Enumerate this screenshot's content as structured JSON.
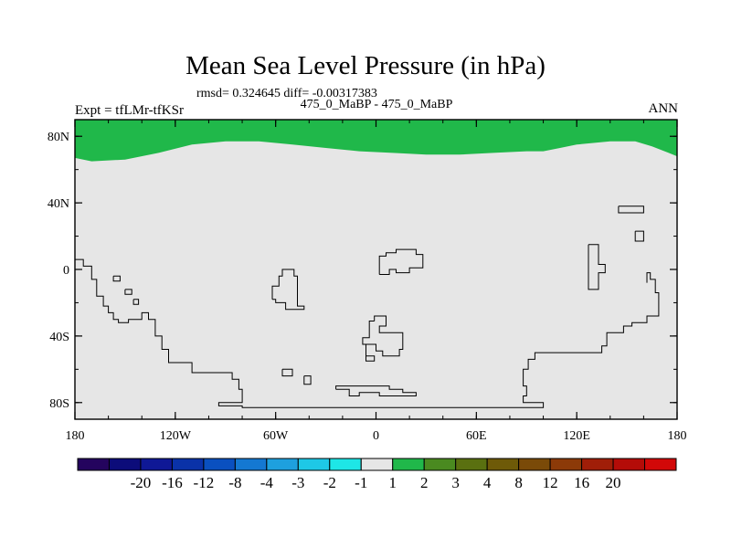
{
  "chart_data": {
    "type": "heatmap",
    "title": "Mean Sea Level Pressure (in hPa)",
    "stats_line": "rmsd= 0.324645 diff= -0.00317383",
    "subtitle": "475_0_MaBP - 475_0_MaBP",
    "left_label": "Expt = tfLMr-tfKSr",
    "right_label": "ANN",
    "x_axis": {
      "range": [
        -180,
        180
      ],
      "ticks": [
        {
          "value": -180,
          "label": "180"
        },
        {
          "value": -120,
          "label": "120W"
        },
        {
          "value": -60,
          "label": "60W"
        },
        {
          "value": 0,
          "label": "0"
        },
        {
          "value": 60,
          "label": "60E"
        },
        {
          "value": 120,
          "label": "120E"
        },
        {
          "value": 180,
          "label": "180"
        }
      ]
    },
    "y_axis": {
      "range": [
        -90,
        90
      ],
      "ticks": [
        {
          "value": 80,
          "label": "80N"
        },
        {
          "value": 40,
          "label": "40N"
        },
        {
          "value": 0,
          "label": "0"
        },
        {
          "value": -40,
          "label": "40S"
        },
        {
          "value": -80,
          "label": "80S"
        }
      ]
    },
    "background_color": "#e6e6e6",
    "field_regions": [
      {
        "name": "arctic-positive-anomaly",
        "color": "#20b84a",
        "range_label": "1 to 2",
        "top_lat": 90,
        "boundary": [
          [
            -180,
            67
          ],
          [
            -170,
            65
          ],
          [
            -150,
            66
          ],
          [
            -130,
            70
          ],
          [
            -110,
            75
          ],
          [
            -90,
            77
          ],
          [
            -70,
            77
          ],
          [
            -50,
            75
          ],
          [
            -30,
            73
          ],
          [
            -10,
            71
          ],
          [
            10,
            70
          ],
          [
            30,
            69
          ],
          [
            50,
            69
          ],
          [
            70,
            70
          ],
          [
            90,
            71
          ],
          [
            100,
            71
          ],
          [
            110,
            73
          ],
          [
            120,
            75
          ],
          [
            140,
            77
          ],
          [
            155,
            77
          ],
          [
            165,
            74
          ],
          [
            175,
            70
          ],
          [
            180,
            68
          ]
        ]
      }
    ],
    "land_outlines": [
      {
        "name": "south-america-outline",
        "points": [
          [
            -180,
            6
          ],
          [
            -175,
            6
          ],
          [
            -175,
            2
          ],
          [
            -170,
            2
          ],
          [
            -170,
            -6
          ],
          [
            -167,
            -6
          ],
          [
            -167,
            -16
          ],
          [
            -163,
            -16
          ],
          [
            -163,
            -22
          ],
          [
            -160,
            -22
          ],
          [
            -160,
            -26
          ],
          [
            -157,
            -26
          ],
          [
            -157,
            -30
          ],
          [
            -154,
            -30
          ],
          [
            -154,
            -32
          ],
          [
            -148,
            -32
          ],
          [
            -148,
            -30
          ],
          [
            -140,
            -30
          ],
          [
            -140,
            -26
          ],
          [
            -136,
            -26
          ],
          [
            -136,
            -30
          ],
          [
            -132,
            -30
          ],
          [
            -132,
            -40
          ],
          [
            -128,
            -40
          ],
          [
            -128,
            -48
          ],
          [
            -124,
            -48
          ],
          [
            -124,
            -56
          ],
          [
            -110,
            -56
          ],
          [
            -110,
            -62
          ],
          [
            -86,
            -62
          ],
          [
            -86,
            -66
          ],
          [
            -82,
            -66
          ],
          [
            -82,
            -72
          ],
          [
            -80,
            -72
          ],
          [
            -80,
            -80
          ],
          [
            -94,
            -80
          ],
          [
            -94,
            -82
          ],
          [
            -80,
            -82
          ],
          [
            -80,
            -83
          ],
          [
            100,
            -83
          ],
          [
            100,
            -80
          ],
          [
            88,
            -80
          ],
          [
            88,
            -76
          ],
          [
            90,
            -76
          ],
          [
            90,
            -70
          ],
          [
            88,
            -70
          ],
          [
            88,
            -60
          ],
          [
            91,
            -60
          ],
          [
            91,
            -54
          ],
          [
            95,
            -54
          ],
          [
            95,
            -50
          ],
          [
            135,
            -50
          ],
          [
            135,
            -46
          ],
          [
            138,
            -46
          ],
          [
            138,
            -38
          ],
          [
            148,
            -38
          ],
          [
            148,
            -34
          ],
          [
            153,
            -34
          ],
          [
            153,
            -32
          ],
          [
            162,
            -32
          ],
          [
            162,
            -28
          ],
          [
            169,
            -28
          ],
          [
            169,
            -14
          ],
          [
            167,
            -14
          ],
          [
            167,
            -6
          ],
          [
            164,
            -6
          ],
          [
            164,
            -2
          ],
          [
            162,
            -2
          ],
          [
            162,
            -8
          ]
        ]
      },
      {
        "name": "africa-north-outline",
        "points": [
          [
            2,
            -3
          ],
          [
            2,
            8
          ],
          [
            6,
            8
          ],
          [
            6,
            10
          ],
          [
            12,
            10
          ],
          [
            12,
            12
          ],
          [
            24,
            12
          ],
          [
            24,
            9
          ],
          [
            28,
            9
          ],
          [
            28,
            1
          ],
          [
            20,
            1
          ],
          [
            20,
            -2
          ],
          [
            12,
            -2
          ],
          [
            12,
            0
          ],
          [
            8,
            0
          ],
          [
            8,
            -3
          ],
          [
            2,
            -3
          ]
        ]
      },
      {
        "name": "pacific-island-outline",
        "points": [
          [
            -62,
            -18
          ],
          [
            -62,
            -10
          ],
          [
            -58,
            -10
          ],
          [
            -58,
            -4
          ],
          [
            -56,
            -4
          ],
          [
            -56,
            0
          ],
          [
            -49,
            0
          ],
          [
            -49,
            -4
          ],
          [
            -47,
            -4
          ],
          [
            -47,
            -22
          ],
          [
            -43,
            -22
          ],
          [
            -43,
            -24
          ],
          [
            -54,
            -24
          ],
          [
            -54,
            -20
          ],
          [
            -60,
            -20
          ],
          [
            -60,
            -18
          ],
          [
            -62,
            -18
          ]
        ]
      },
      {
        "name": "atlantic-island-outline",
        "points": [
          [
            -1,
            -31
          ],
          [
            -1,
            -28
          ],
          [
            6,
            -28
          ],
          [
            6,
            -34
          ],
          [
            2,
            -34
          ],
          [
            2,
            -38
          ],
          [
            16,
            -38
          ],
          [
            16,
            -48
          ],
          [
            14,
            -48
          ],
          [
            14,
            -52
          ],
          [
            4,
            -52
          ],
          [
            4,
            -49
          ],
          [
            0,
            -49
          ],
          [
            0,
            -45
          ],
          [
            -6,
            -45
          ],
          [
            -6,
            -52
          ],
          [
            -1,
            -52
          ],
          [
            -1,
            -55
          ],
          [
            -6,
            -55
          ],
          [
            -6,
            -51
          ],
          [
            -6,
            -45
          ],
          [
            -8,
            -45
          ],
          [
            -8,
            -41
          ],
          [
            -4,
            -41
          ],
          [
            -4,
            -31
          ],
          [
            -1,
            -31
          ]
        ]
      },
      {
        "name": "indian-ocean-outline",
        "points": [
          [
            -24,
            -72
          ],
          [
            -24,
            -70
          ],
          [
            8,
            -70
          ],
          [
            8,
            -72
          ],
          [
            16,
            -72
          ],
          [
            16,
            -74
          ],
          [
            24,
            -74
          ],
          [
            24,
            -76
          ],
          [
            2,
            -76
          ],
          [
            2,
            -74
          ],
          [
            -10,
            -74
          ],
          [
            -10,
            -76
          ],
          [
            -16,
            -76
          ],
          [
            -16,
            -72
          ],
          [
            -24,
            -72
          ]
        ]
      },
      {
        "name": "north-pacific-outline",
        "points": [
          [
            145,
            38
          ],
          [
            145,
            34
          ],
          [
            160,
            34
          ],
          [
            160,
            38
          ],
          [
            145,
            38
          ]
        ]
      },
      {
        "name": "east-coast-outline",
        "points": [
          [
            127,
            15
          ],
          [
            133,
            15
          ],
          [
            133,
            3
          ],
          [
            137,
            3
          ],
          [
            137,
            -2
          ],
          [
            133,
            -2
          ],
          [
            133,
            -12
          ],
          [
            127,
            -12
          ],
          [
            127,
            15
          ]
        ]
      },
      {
        "name": "east-coast-small-outline",
        "points": [
          [
            155,
            23
          ],
          [
            160,
            23
          ],
          [
            160,
            17
          ],
          [
            155,
            17
          ],
          [
            155,
            23
          ]
        ]
      },
      {
        "name": "island-a-outline",
        "points": [
          [
            -157,
            -4
          ],
          [
            -153,
            -4
          ],
          [
            -153,
            -7
          ],
          [
            -157,
            -7
          ],
          [
            -157,
            -4
          ]
        ]
      },
      {
        "name": "island-b-outline",
        "points": [
          [
            -150,
            -12
          ],
          [
            -146,
            -12
          ],
          [
            -146,
            -15
          ],
          [
            -150,
            -15
          ],
          [
            -150,
            -12
          ]
        ]
      },
      {
        "name": "island-c-outline",
        "points": [
          [
            -145,
            -18
          ],
          [
            -142,
            -18
          ],
          [
            -142,
            -21
          ],
          [
            -145,
            -21
          ],
          [
            -145,
            -18
          ]
        ]
      },
      {
        "name": "island-d-outline",
        "points": [
          [
            -56,
            -60
          ],
          [
            -50,
            -60
          ],
          [
            -50,
            -64
          ],
          [
            -56,
            -64
          ],
          [
            -56,
            -60
          ]
        ]
      },
      {
        "name": "island-e-outline",
        "points": [
          [
            -43,
            -64
          ],
          [
            -39,
            -64
          ],
          [
            -39,
            -69
          ],
          [
            -43,
            -69
          ],
          [
            -43,
            -64
          ]
        ]
      }
    ],
    "colorbar": {
      "colors": [
        "#24045e",
        "#0c0c7a",
        "#0f1896",
        "#0a32a8",
        "#0a50c0",
        "#1478d2",
        "#1ea0de",
        "#1ec8e6",
        "#1ee6e6",
        "#e6e6e6",
        "#20b84a",
        "#4a8a20",
        "#5a7010",
        "#6e5a08",
        "#7a4a08",
        "#8c3a08",
        "#a01e08",
        "#b40c08",
        "#d20808"
      ],
      "labels": [
        "-20",
        "-16",
        "-12",
        "-8",
        "-4",
        "-3",
        "-2",
        "-1",
        "1",
        "2",
        "3",
        "4",
        "8",
        "12",
        "16",
        "20"
      ],
      "labels_start_boundary": 2
    }
  }
}
